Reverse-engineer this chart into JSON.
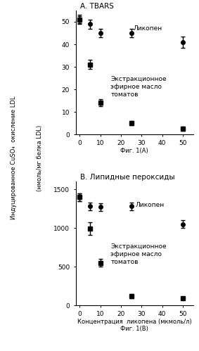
{
  "panel_A": {
    "title": "A. TBARS",
    "xlabel_bottom": "Фиг. 1(A)",
    "x": [
      0,
      5,
      10,
      25,
      50
    ],
    "lycopene_y": [
      51,
      49,
      45,
      45,
      41
    ],
    "lycopene_err": [
      1.5,
      2,
      2,
      2,
      2.5
    ],
    "oil_y": [
      51,
      31,
      14,
      5,
      2.5
    ],
    "oil_err": [
      2,
      2,
      1.5,
      1,
      1
    ],
    "ylim": [
      0,
      55
    ],
    "yticks": [
      0,
      10,
      20,
      30,
      40,
      50
    ],
    "lycopene_label": "Ликопен",
    "oil_label": "Экстракционное\nэфирное масло\nтоматов"
  },
  "panel_B": {
    "title": "B. Липидные пероксиды",
    "xlabel": "Концентрация  ликопена (мкмоль/л)",
    "xlabel_bottom": "Фиг. 1(B)",
    "x": [
      0,
      5,
      10,
      25,
      50
    ],
    "lycopene_y": [
      1400,
      1280,
      1270,
      1280,
      1050
    ],
    "lycopene_err": [
      50,
      50,
      50,
      50,
      50
    ],
    "oil_y": [
      1400,
      990,
      550,
      120,
      90
    ],
    "oil_err": [
      50,
      80,
      50,
      30,
      20
    ],
    "ylim": [
      0,
      1600
    ],
    "yticks": [
      0,
      500,
      1000,
      1500
    ],
    "lycopene_label": "Ликопен",
    "oil_label": "Экстракционное\nэфирное масло\nтоматов"
  },
  "ylabel_top": "Индуцированное CuSO₄  окисление LDL",
  "ylabel_bottom": "(нмоль/мг белка LDL)",
  "line_color": "#000000",
  "marker_lycopene": "o",
  "marker_oil": "s",
  "markersize": 4,
  "linewidth": 1.0,
  "fontsize_title": 7.5,
  "fontsize_tick": 6.5,
  "fontsize_label": 6.0,
  "fontsize_annot": 6.5,
  "fontsize_ylabel": 6.0
}
